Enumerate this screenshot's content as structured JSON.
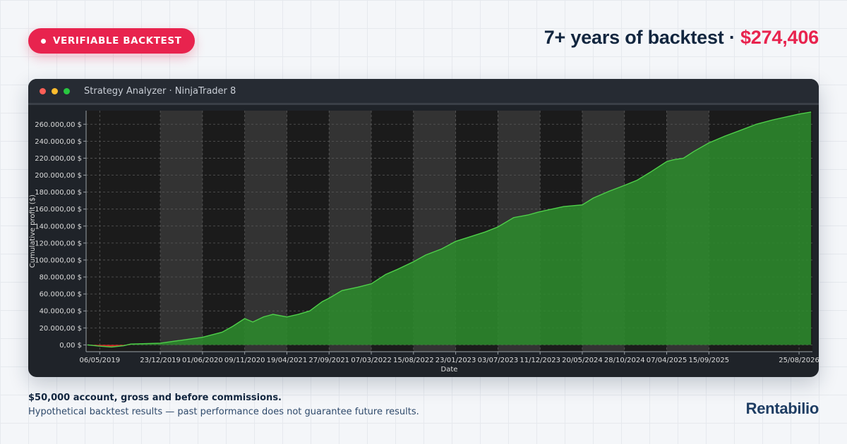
{
  "badge": {
    "label": "VERIFIABLE BACKTEST"
  },
  "headline": {
    "text": "7+ years of backtest · ",
    "amount": "$274,406"
  },
  "window": {
    "title": "Strategy Analyzer · NinjaTrader 8"
  },
  "chart_data": {
    "type": "area",
    "title": "",
    "xlabel": "Date",
    "ylabel": "Cumulative profit ($)",
    "ylim": [
      -8000,
      276000
    ],
    "yticks": [
      0,
      20000,
      40000,
      60000,
      80000,
      100000,
      120000,
      140000,
      160000,
      180000,
      200000,
      220000,
      240000,
      260000
    ],
    "ytick_labels": [
      "0,00 $",
      "20.000,00 $",
      "40.000,00 $",
      "60.000,00 $",
      "80.000,00 $",
      "100.000,00 $",
      "120.000,00 $",
      "140.000,00 $",
      "160.000,00 $",
      "180.000,00 $",
      "200.000,00 $",
      "220.000,00 $",
      "240.000,00 $",
      "260.000,00 $"
    ],
    "xlim": [
      "2019-03-15",
      "2026-10-15"
    ],
    "xticks": [
      "2019-05-06",
      "2019-12-23",
      "2020-06-01",
      "2020-11-09",
      "2021-04-19",
      "2021-09-27",
      "2022-03-07",
      "2022-08-15",
      "2023-01-23",
      "2023-07-03",
      "2023-12-11",
      "2024-05-20",
      "2024-10-28",
      "2025-04-07",
      "2025-09-15",
      "2026-08-25"
    ],
    "xtick_labels": [
      "06/05/2019",
      "23/12/2019",
      "01/06/2020",
      "09/11/2020",
      "19/04/2021",
      "27/09/2021",
      "07/03/2022",
      "15/08/2022",
      "23/01/2023",
      "03/07/2023",
      "11/12/2023",
      "20/05/2024",
      "28/10/2024",
      "07/04/2025",
      "15/09/2025",
      "25/08/2026"
    ],
    "shaded_bands": [
      [
        "2019-12-23",
        "2020-06-01"
      ],
      [
        "2020-11-09",
        "2021-04-19"
      ],
      [
        "2021-09-27",
        "2022-03-07"
      ],
      [
        "2022-08-15",
        "2023-01-23"
      ],
      [
        "2023-07-03",
        "2023-12-11"
      ],
      [
        "2024-05-20",
        "2024-10-28"
      ],
      [
        "2025-04-07",
        "2025-09-15"
      ]
    ],
    "grid": true,
    "series": [
      {
        "x": [
          "2019-03-20",
          "2019-05-06",
          "2019-06-20",
          "2019-08-05",
          "2019-09-01",
          "2019-12-23",
          "2020-03-01",
          "2020-06-01",
          "2020-08-15",
          "2020-09-25",
          "2020-10-25",
          "2020-11-09",
          "2020-12-10",
          "2021-01-20",
          "2021-02-25",
          "2021-04-19",
          "2021-06-01",
          "2021-07-15",
          "2021-09-01",
          "2021-09-27",
          "2021-11-15",
          "2022-01-15",
          "2022-03-07",
          "2022-05-01",
          "2022-06-15",
          "2022-08-15",
          "2022-10-01",
          "2022-11-30",
          "2023-01-23",
          "2023-03-15",
          "2023-05-15",
          "2023-07-03",
          "2023-09-01",
          "2023-10-25",
          "2023-12-11",
          "2024-01-25",
          "2024-03-10",
          "2024-05-20",
          "2024-07-01",
          "2024-08-30",
          "2024-10-28",
          "2024-12-15",
          "2025-02-01",
          "2025-04-07",
          "2025-05-01",
          "2025-06-10",
          "2025-07-20",
          "2025-09-15",
          "2025-11-15",
          "2026-01-15",
          "2026-03-15",
          "2026-05-15",
          "2026-08-25",
          "2026-10-10"
        ],
        "y": [
          0,
          -1500,
          -2500,
          -1000,
          1000,
          2000,
          5000,
          9000,
          15000,
          22000,
          28000,
          31000,
          27000,
          33000,
          36000,
          33000,
          36000,
          40000,
          51000,
          55000,
          64000,
          68000,
          72000,
          83000,
          89000,
          98000,
          106000,
          113000,
          122000,
          127000,
          133000,
          139000,
          150000,
          153000,
          157000,
          160000,
          163000,
          165000,
          173000,
          181000,
          188000,
          194000,
          203000,
          216000,
          218000,
          220000,
          228000,
          238000,
          246000,
          253000,
          260000,
          265000,
          272000,
          274406
        ]
      }
    ]
  },
  "footer": {
    "line1": "$50,000 account, gross and before commissions.",
    "line2": "Hypothetical backtest results — past performance does not guarantee future results."
  },
  "brand": {
    "name": "Rentabilio"
  },
  "colors": {
    "accent": "#e8234e",
    "navy": "#12263f",
    "profit_fill": "#2c8a2c",
    "profit_line": "#4fcf4a",
    "drawdown": "#d32020"
  }
}
